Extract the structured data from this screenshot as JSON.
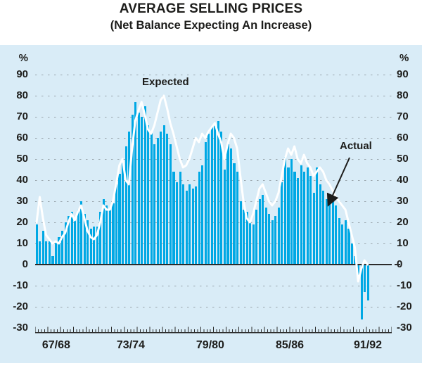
{
  "header": {
    "title": "AVERAGE SELLING PRICES",
    "subtitle": "(Net Balance Expecting An Increase)"
  },
  "chart_data": {
    "type": "bar",
    "title": "AVERAGE SELLING PRICES",
    "subtitle": "(Net Balance Expecting An Increase)",
    "unit_label": "%",
    "ylim": [
      -30,
      90
    ],
    "y_ticks": [
      90,
      80,
      70,
      60,
      50,
      40,
      30,
      20,
      10,
      0,
      -10,
      -20,
      -30
    ],
    "categories": [
      "67/68",
      "73/74",
      "79/80",
      "85/86",
      "91/92"
    ],
    "grid": "dashed-horizontal",
    "annotations": {
      "expected": "Expected",
      "actual": "Actual"
    },
    "colors": {
      "bar": "#00a8e4",
      "line": "#ffffff",
      "panel_background": "#d9ecf7",
      "grid": "#9aa6ad",
      "axis": "#2b2b2b",
      "text": "#1d1d1b"
    },
    "series": [
      {
        "name": "Actual",
        "style": "bar",
        "values": [
          19,
          11,
          16,
          11,
          11,
          4,
          11,
          13,
          16,
          20,
          23,
          25,
          21,
          26,
          30,
          24,
          21,
          17,
          18,
          18,
          25,
          31,
          28,
          26,
          29,
          38,
          43,
          50,
          56,
          63,
          71,
          77,
          72,
          70,
          75,
          66,
          63,
          57,
          60,
          63,
          66,
          62,
          57,
          44,
          39,
          44,
          38,
          35,
          38,
          36,
          37,
          44,
          47,
          58,
          62,
          65,
          67,
          68,
          63,
          45,
          57,
          55,
          48,
          44,
          30,
          26,
          25,
          20,
          19,
          26,
          31,
          33,
          27,
          24,
          21,
          23,
          27,
          39,
          51,
          46,
          50,
          44,
          41,
          47,
          44,
          46,
          42,
          34,
          46,
          38,
          35,
          31,
          33,
          32,
          28,
          22,
          19,
          21,
          17,
          10,
          4,
          -5,
          -26,
          -13,
          -17
        ]
      },
      {
        "name": "Expected",
        "style": "line",
        "values": [
          20,
          32,
          22,
          14,
          12,
          10,
          11,
          10,
          13,
          15,
          20,
          24,
          21,
          25,
          28,
          22,
          16,
          13,
          12,
          14,
          20,
          28,
          26,
          26,
          30,
          38,
          47,
          50,
          40,
          38,
          55,
          68,
          73,
          77,
          71,
          64,
          62,
          66,
          72,
          78,
          80,
          74,
          67,
          62,
          56,
          50,
          46,
          47,
          50,
          55,
          60,
          58,
          62,
          60,
          63,
          65,
          67,
          62,
          58,
          50,
          57,
          62,
          60,
          55,
          42,
          30,
          22,
          20,
          24,
          30,
          36,
          38,
          34,
          30,
          28,
          30,
          34,
          42,
          50,
          55,
          52,
          56,
          50,
          48,
          52,
          48,
          46,
          42,
          44,
          46,
          44,
          40,
          38,
          35,
          32,
          30,
          28,
          26,
          20,
          14,
          8,
          -8,
          -2,
          2,
          0
        ]
      }
    ]
  }
}
